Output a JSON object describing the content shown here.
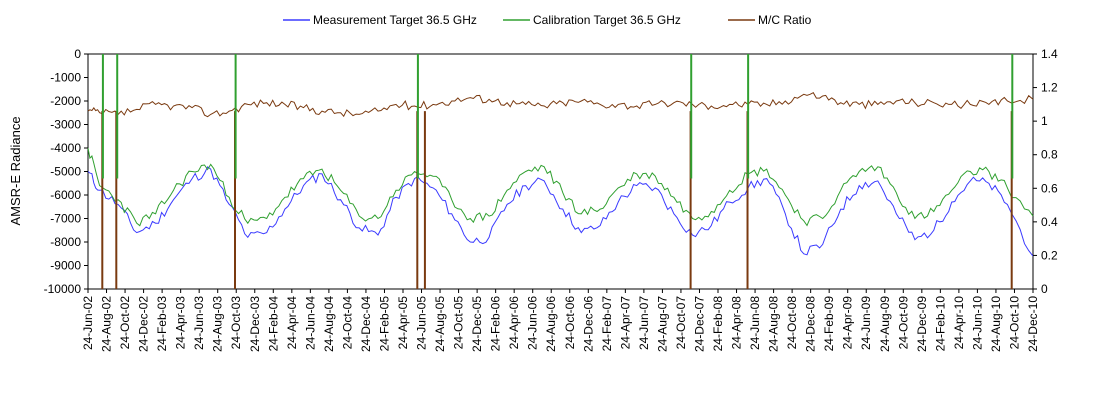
{
  "chart_data": {
    "type": "line",
    "title": "",
    "ylabel": "AMSR-E Radiance",
    "y2label": "",
    "ylim": [
      -10000,
      0
    ],
    "y2lim": [
      0,
      1.4
    ],
    "yticks": [
      0,
      -1000,
      -2000,
      -3000,
      -4000,
      -5000,
      -6000,
      -7000,
      -8000,
      -9000,
      -10000
    ],
    "y2ticks": [
      1.4,
      1.2,
      1,
      0.8,
      0.6,
      0.4,
      0.2,
      0
    ],
    "xlim": [
      "2002-06-24",
      "2010-12-24"
    ],
    "xticks": [
      "24-Jun-02",
      "24-Aug-02",
      "24-Oct-02",
      "24-Dec-02",
      "24-Feb-03",
      "24-Apr-03",
      "24-Jun-03",
      "24-Aug-03",
      "24-Oct-03",
      "24-Dec-03",
      "24-Feb-04",
      "24-Apr-04",
      "24-Jun-04",
      "24-Aug-04",
      "24-Oct-04",
      "24-Dec-04",
      "24-Feb-05",
      "24-Apr-05",
      "24-Jun-05",
      "24-Aug-05",
      "24-Oct-05",
      "24-Dec-05",
      "24-Feb-06",
      "24-Apr-06",
      "24-Jun-06",
      "24-Aug-06",
      "24-Oct-06",
      "24-Dec-06",
      "24-Feb-07",
      "24-Apr-07",
      "24-Jun-07",
      "24-Aug-07",
      "24-Oct-07",
      "24-Dec-07",
      "24-Feb-08",
      "24-Apr-08",
      "24-Jun-08",
      "24-Aug-08",
      "24-Oct-08",
      "24-Dec-08",
      "24-Feb-09",
      "24-Apr-09",
      "24-Jun-09",
      "24-Aug-09",
      "24-Oct-09",
      "24-Dec-09",
      "24-Feb-10",
      "24-Apr-10",
      "24-Jun-10",
      "24-Aug-10",
      "24-Oct-10",
      "24-Dec-10"
    ],
    "grid": false,
    "legend_position": "top",
    "series": [
      {
        "name": "Measurement Target 36.5 GHz",
        "axis": "left",
        "color": "#3b3bff",
        "x": [
          "2002-06-24",
          "2002-08-01",
          "2002-10-01",
          "2002-12-01",
          "2003-02-01",
          "2003-04-01",
          "2003-06-01",
          "2003-08-01",
          "2003-10-01",
          "2003-12-01",
          "2004-02-01",
          "2004-04-01",
          "2004-06-01",
          "2004-08-01",
          "2004-10-01",
          "2004-12-01",
          "2005-02-01",
          "2005-04-01",
          "2005-06-01",
          "2005-08-01",
          "2005-10-01",
          "2005-12-01",
          "2006-02-01",
          "2006-04-01",
          "2006-06-01",
          "2006-08-01",
          "2006-10-01",
          "2006-12-01",
          "2007-02-01",
          "2007-04-01",
          "2007-06-01",
          "2007-08-01",
          "2007-10-01",
          "2007-12-01",
          "2008-02-01",
          "2008-04-01",
          "2008-06-01",
          "2008-08-01",
          "2008-10-01",
          "2008-12-01",
          "2009-02-01",
          "2009-04-01",
          "2009-06-01",
          "2009-08-01",
          "2009-10-01",
          "2009-12-01",
          "2010-02-01",
          "2010-04-01",
          "2010-06-01",
          "2010-08-01",
          "2010-10-01",
          "2010-12-24"
        ],
        "values": [
          -5000,
          -5800,
          -6400,
          -7600,
          -7200,
          -6200,
          -5300,
          -4900,
          -6400,
          -7800,
          -7600,
          -6600,
          -5600,
          -5100,
          -6200,
          -7400,
          -7700,
          -6100,
          -5300,
          -5700,
          -6800,
          -8000,
          -7800,
          -6400,
          -5600,
          -5400,
          -6600,
          -7600,
          -7300,
          -6300,
          -5600,
          -5700,
          -6800,
          -7700,
          -7300,
          -6300,
          -5700,
          -5300,
          -6800,
          -8500,
          -8100,
          -6600,
          -5600,
          -5400,
          -6800,
          -7900,
          -7500,
          -6300,
          -5400,
          -5500,
          -6400,
          -8600
        ]
      },
      {
        "name": "Calibration Target 36.5 GHz",
        "axis": "left",
        "color": "#30a030",
        "x": [
          "2002-06-24",
          "2002-08-01",
          "2002-10-01",
          "2002-12-01",
          "2003-02-01",
          "2003-04-01",
          "2003-06-01",
          "2003-08-01",
          "2003-10-01",
          "2003-12-01",
          "2004-02-01",
          "2004-04-01",
          "2004-06-01",
          "2004-08-01",
          "2004-10-01",
          "2004-12-01",
          "2005-02-01",
          "2005-04-01",
          "2005-06-01",
          "2005-08-01",
          "2005-10-01",
          "2005-12-01",
          "2006-02-01",
          "2006-04-01",
          "2006-06-01",
          "2006-08-01",
          "2006-10-01",
          "2006-12-01",
          "2007-02-01",
          "2007-04-01",
          "2007-06-01",
          "2007-08-01",
          "2007-10-01",
          "2007-12-01",
          "2008-02-01",
          "2008-04-01",
          "2008-06-01",
          "2008-08-01",
          "2008-10-01",
          "2008-12-01",
          "2009-02-01",
          "2009-04-01",
          "2009-06-01",
          "2009-08-01",
          "2009-10-01",
          "2009-12-01",
          "2010-02-01",
          "2010-04-01",
          "2010-06-01",
          "2010-08-01",
          "2010-10-01",
          "2010-12-24"
        ],
        "values": [
          -4000,
          -5600,
          -6200,
          -7200,
          -6800,
          -5800,
          -5000,
          -4700,
          -6100,
          -7200,
          -7000,
          -6100,
          -5300,
          -4900,
          -5800,
          -6900,
          -7000,
          -5800,
          -5000,
          -5200,
          -6200,
          -7000,
          -6900,
          -5800,
          -5000,
          -4800,
          -5900,
          -6800,
          -6600,
          -5700,
          -5100,
          -5200,
          -6100,
          -7000,
          -6700,
          -5800,
          -5100,
          -4900,
          -6000,
          -7100,
          -7000,
          -5800,
          -5000,
          -4800,
          -5900,
          -7000,
          -6700,
          -5800,
          -5000,
          -5000,
          -5700,
          -6900
        ]
      },
      {
        "name": "M/C Ratio",
        "axis": "right",
        "color": "#7a3a10",
        "x": [
          "2002-06-24",
          "2002-08-01",
          "2002-10-01",
          "2002-12-01",
          "2003-02-01",
          "2003-04-01",
          "2003-06-01",
          "2003-08-01",
          "2003-10-01",
          "2003-12-01",
          "2004-02-01",
          "2004-04-01",
          "2004-06-01",
          "2004-08-01",
          "2004-10-01",
          "2004-12-01",
          "2005-02-01",
          "2005-04-01",
          "2005-06-01",
          "2005-08-01",
          "2005-10-01",
          "2005-12-01",
          "2006-02-01",
          "2006-04-01",
          "2006-06-01",
          "2006-08-01",
          "2006-10-01",
          "2006-12-01",
          "2007-02-01",
          "2007-04-01",
          "2007-06-01",
          "2007-08-01",
          "2007-10-01",
          "2007-12-01",
          "2008-02-01",
          "2008-04-01",
          "2008-06-01",
          "2008-08-01",
          "2008-10-01",
          "2008-12-01",
          "2009-02-01",
          "2009-04-01",
          "2009-06-01",
          "2009-08-01",
          "2009-10-01",
          "2009-12-01",
          "2010-02-01",
          "2010-04-01",
          "2010-06-01",
          "2010-08-01",
          "2010-10-01",
          "2010-12-24"
        ],
        "values": [
          1.06,
          1.05,
          1.04,
          1.07,
          1.1,
          1.09,
          1.08,
          1.04,
          1.06,
          1.1,
          1.11,
          1.1,
          1.08,
          1.06,
          1.05,
          1.04,
          1.06,
          1.1,
          1.09,
          1.1,
          1.12,
          1.14,
          1.13,
          1.11,
          1.1,
          1.09,
          1.11,
          1.12,
          1.1,
          1.1,
          1.09,
          1.1,
          1.11,
          1.1,
          1.09,
          1.1,
          1.1,
          1.1,
          1.12,
          1.16,
          1.15,
          1.11,
          1.1,
          1.1,
          1.12,
          1.11,
          1.11,
          1.1,
          1.1,
          1.1,
          1.12,
          1.13
        ]
      }
    ],
    "spikes": [
      {
        "series": "M/C Ratio",
        "x": "2002-08-10",
        "value": 0
      },
      {
        "series": "M/C Ratio",
        "x": "2002-09-25",
        "value": 0
      },
      {
        "series": "M/C Ratio",
        "x": "2003-10-20",
        "value": 0
      },
      {
        "series": "M/C Ratio",
        "x": "2005-06-10",
        "value": 0
      },
      {
        "series": "M/C Ratio",
        "x": "2005-07-05",
        "value": 0
      },
      {
        "series": "M/C Ratio",
        "x": "2007-11-25",
        "value": 0
      },
      {
        "series": "M/C Ratio",
        "x": "2008-05-30",
        "value": 0
      },
      {
        "series": "M/C Ratio",
        "x": "2010-10-15",
        "value": 0
      },
      {
        "series": "Calibration Target 36.5 GHz",
        "x": "2002-08-12",
        "value": 0
      },
      {
        "series": "Calibration Target 36.5 GHz",
        "x": "2002-09-28",
        "value": 0
      },
      {
        "series": "Calibration Target 36.5 GHz",
        "x": "2003-10-22",
        "value": 0
      },
      {
        "series": "Calibration Target 36.5 GHz",
        "x": "2005-06-12",
        "value": 0
      },
      {
        "series": "Calibration Target 36.5 GHz",
        "x": "2007-11-27",
        "value": 0
      },
      {
        "series": "Calibration Target 36.5 GHz",
        "x": "2008-06-01",
        "value": 0
      },
      {
        "series": "Calibration Target 36.5 GHz",
        "x": "2010-10-17",
        "value": 0
      }
    ]
  }
}
